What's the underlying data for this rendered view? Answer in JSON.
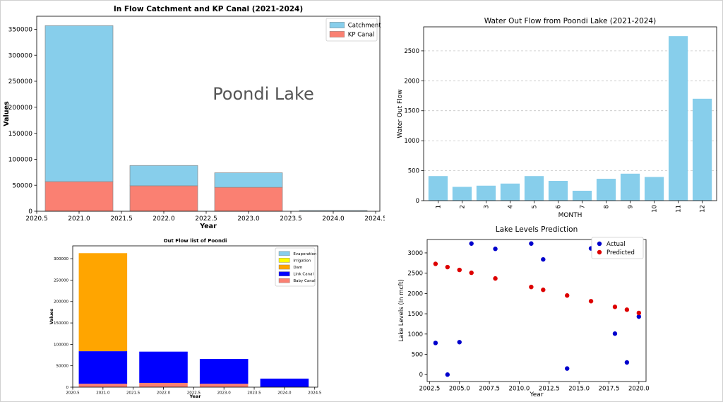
{
  "page": {
    "watermark": "Poondi Lake"
  },
  "chart_data": [
    {
      "id": "inflow",
      "type": "bar",
      "stacked": true,
      "title": "In Flow Catchment and KP Canal (2021-2024)",
      "xlabel": "Year",
      "ylabel": "Values",
      "x": [
        2021,
        2022,
        2023,
        2024
      ],
      "bar_width": 0.8,
      "xlim": [
        2020.5,
        2024.55
      ],
      "ylim": [
        0,
        375000
      ],
      "xticks": [
        2020.5,
        2021.0,
        2021.5,
        2022.0,
        2022.5,
        2023.0,
        2023.5,
        2024.0,
        2024.5
      ],
      "xtick_labels": [
        "2020.5",
        "2021.0",
        "2021.5",
        "2022.0",
        "2022.5",
        "2023.0",
        "2023.5",
        "2024.0",
        "2024.5"
      ],
      "yticks": [
        0,
        50000,
        100000,
        150000,
        200000,
        250000,
        300000,
        350000
      ],
      "ytick_labels": [
        "0",
        "50000",
        "100000",
        "150000",
        "200000",
        "250000",
        "300000",
        "350000"
      ],
      "legend_position": "top-right",
      "grid": false,
      "series": [
        {
          "name": "KP Canal",
          "color": "#fa8072",
          "values": [
            57000,
            49000,
            46000,
            0
          ]
        },
        {
          "name": "Catchment",
          "color": "#87ceeb",
          "values": [
            300000,
            39000,
            28000,
            1500
          ]
        }
      ],
      "legend_order": [
        "Catchment",
        "KP Canal"
      ]
    },
    {
      "id": "outflow_month",
      "type": "bar",
      "title": "Water Out Flow from Poondi Lake (2021-2024)",
      "xlabel": "MONTH",
      "ylabel": "Water Out Flow",
      "categories": [
        "1",
        "2",
        "3",
        "4",
        "5",
        "6",
        "7",
        "8",
        "9",
        "10",
        "11",
        "12"
      ],
      "values": [
        410,
        230,
        250,
        285,
        410,
        330,
        165,
        365,
        450,
        395,
        2745,
        1700
      ],
      "color": "#87ceeb",
      "ylim": [
        0,
        2900
      ],
      "yticks": [
        0,
        500,
        1000,
        1500,
        2000,
        2500
      ],
      "ytick_labels": [
        "0",
        "500",
        "1000",
        "1500",
        "2000",
        "2500"
      ],
      "grid": "y-dashed"
    },
    {
      "id": "outflow_list",
      "type": "bar",
      "stacked": true,
      "title": "Out Flow list of Poondi",
      "xlabel": "Year",
      "ylabel": "Values",
      "x": [
        2021,
        2022,
        2023,
        2024
      ],
      "bar_width": 0.8,
      "xlim": [
        2020.5,
        2024.55
      ],
      "ylim": [
        0,
        330000
      ],
      "xticks": [
        2020.5,
        2021.0,
        2021.5,
        2022.0,
        2022.5,
        2023.0,
        2023.5,
        2024.0,
        2024.5
      ],
      "xtick_labels": [
        "2020.5",
        "2021.0",
        "2021.5",
        "2022.0",
        "2022.5",
        "2023.0",
        "2023.5",
        "2024.0",
        "2024.5"
      ],
      "yticks": [
        0,
        50000,
        100000,
        150000,
        200000,
        250000,
        300000
      ],
      "ytick_labels": [
        "0",
        "50000",
        "100000",
        "150000",
        "200000",
        "250000",
        "300000"
      ],
      "legend_position": "top-right",
      "series": [
        {
          "name": "Baby Canal",
          "color": "#fa8072",
          "values": [
            8000,
            10000,
            8000,
            0
          ]
        },
        {
          "name": "Link Canal",
          "color": "#0000ff",
          "values": [
            76000,
            73000,
            58000,
            20000
          ]
        },
        {
          "name": "Dam",
          "color": "#ffa500",
          "values": [
            229000,
            0,
            0,
            0
          ]
        },
        {
          "name": "Irrigation",
          "color": "#ffff00",
          "values": [
            0,
            0,
            0,
            0
          ]
        },
        {
          "name": "Evaporation",
          "color": "#87ceeb",
          "values": [
            0,
            0,
            0,
            0
          ]
        }
      ],
      "legend_order": [
        "Evaporation",
        "Irrigation",
        "Dam",
        "Link Canal",
        "Baby Canal"
      ]
    },
    {
      "id": "lake_levels",
      "type": "scatter",
      "title": "Lake Levels Prediction",
      "xlabel": "Year",
      "ylabel": "Lake Levels (In mcft)",
      "xlim": [
        2002.3,
        2020.6
      ],
      "ylim": [
        -170,
        3330
      ],
      "xticks": [
        2002.5,
        2005.0,
        2007.5,
        2010.0,
        2012.5,
        2015.0,
        2017.5,
        2020.0
      ],
      "xtick_labels": [
        "2002.5",
        "2005.0",
        "2007.5",
        "2010.0",
        "2012.5",
        "2015.0",
        "2017.5",
        "2020.0"
      ],
      "yticks": [
        0,
        500,
        1000,
        1500,
        2000,
        2500,
        3000
      ],
      "ytick_labels": [
        "0",
        "500",
        "1000",
        "1500",
        "2000",
        "2500",
        "3000"
      ],
      "legend_position": "top-right",
      "series": [
        {
          "name": "Actual",
          "color": "#0000cc",
          "x": [
            2003,
            2004,
            2005,
            2006,
            2008,
            2011,
            2012,
            2014,
            2016,
            2018,
            2019,
            2020
          ],
          "y": [
            780,
            0,
            800,
            3230,
            3100,
            3230,
            2840,
            150,
            3110,
            1010,
            300,
            1430
          ]
        },
        {
          "name": "Predicted",
          "color": "#dd0000",
          "x": [
            2003,
            2004,
            2005,
            2006,
            2008,
            2011,
            2012,
            2014,
            2016,
            2018,
            2019,
            2020
          ],
          "y": [
            2730,
            2650,
            2580,
            2510,
            2370,
            2160,
            2090,
            1950,
            1810,
            1670,
            1600,
            1520
          ]
        }
      ]
    }
  ]
}
